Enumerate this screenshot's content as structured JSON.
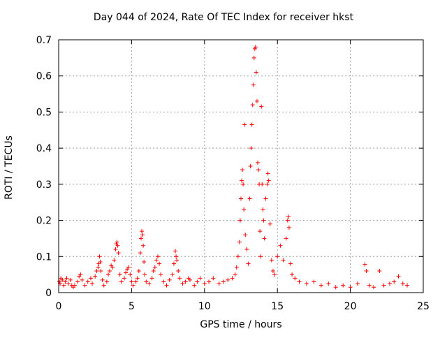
{
  "chart_data": {
    "type": "scatter",
    "title": "Day 044 of 2024, Rate Of TEC Index for receiver hkst",
    "xlabel": "GPS time / hours",
    "ylabel": "ROTI / TECUs",
    "xlim": [
      0,
      25
    ],
    "ylim": [
      0,
      0.7
    ],
    "xticks": [
      "0",
      "5",
      "10",
      "15",
      "20",
      "25"
    ],
    "yticks": [
      "0",
      "0.1",
      "0.2",
      "0.3",
      "0.4",
      "0.5",
      "0.6",
      "0.7"
    ],
    "grid": true,
    "marker": "+",
    "color": "#ff0000",
    "series": [
      {
        "name": "ROTI",
        "points": [
          [
            0.05,
            0.03
          ],
          [
            0.1,
            0.025
          ],
          [
            0.15,
            0.04
          ],
          [
            0.25,
            0.035
          ],
          [
            0.35,
            0.02
          ],
          [
            0.45,
            0.03
          ],
          [
            0.55,
            0.04
          ],
          [
            0.65,
            0.025
          ],
          [
            0.8,
            0.035
          ],
          [
            0.9,
            0.02
          ],
          [
            1.0,
            0.015
          ],
          [
            1.1,
            0.02
          ],
          [
            1.3,
            0.03
          ],
          [
            1.4,
            0.045
          ],
          [
            1.5,
            0.05
          ],
          [
            1.6,
            0.035
          ],
          [
            1.8,
            0.02
          ],
          [
            2.0,
            0.03
          ],
          [
            2.2,
            0.04
          ],
          [
            2.3,
            0.025
          ],
          [
            2.5,
            0.045
          ],
          [
            2.6,
            0.06
          ],
          [
            2.7,
            0.07
          ],
          [
            2.75,
            0.08
          ],
          [
            2.8,
            0.1
          ],
          [
            2.85,
            0.085
          ],
          [
            2.9,
            0.06
          ],
          [
            3.0,
            0.035
          ],
          [
            3.1,
            0.02
          ],
          [
            3.3,
            0.03
          ],
          [
            3.4,
            0.05
          ],
          [
            3.5,
            0.06
          ],
          [
            3.6,
            0.075
          ],
          [
            3.7,
            0.07
          ],
          [
            3.8,
            0.09
          ],
          [
            3.9,
            0.12
          ],
          [
            3.95,
            0.135
          ],
          [
            4.0,
            0.14
          ],
          [
            4.05,
            0.13
          ],
          [
            4.1,
            0.11
          ],
          [
            4.2,
            0.05
          ],
          [
            4.3,
            0.03
          ],
          [
            4.5,
            0.04
          ],
          [
            4.6,
            0.055
          ],
          [
            4.7,
            0.065
          ],
          [
            4.8,
            0.07
          ],
          [
            4.9,
            0.05
          ],
          [
            5.0,
            0.03
          ],
          [
            5.1,
            0.02
          ],
          [
            5.3,
            0.03
          ],
          [
            5.4,
            0.04
          ],
          [
            5.5,
            0.06
          ],
          [
            5.6,
            0.11
          ],
          [
            5.65,
            0.15
          ],
          [
            5.7,
            0.17
          ],
          [
            5.75,
            0.16
          ],
          [
            5.8,
            0.13
          ],
          [
            5.85,
            0.085
          ],
          [
            5.9,
            0.05
          ],
          [
            6.0,
            0.03
          ],
          [
            6.2,
            0.025
          ],
          [
            6.4,
            0.04
          ],
          [
            6.5,
            0.06
          ],
          [
            6.6,
            0.07
          ],
          [
            6.7,
            0.09
          ],
          [
            6.8,
            0.1
          ],
          [
            6.9,
            0.08
          ],
          [
            7.0,
            0.05
          ],
          [
            7.2,
            0.03
          ],
          [
            7.4,
            0.02
          ],
          [
            7.6,
            0.035
          ],
          [
            7.8,
            0.05
          ],
          [
            7.9,
            0.08
          ],
          [
            8.0,
            0.115
          ],
          [
            8.05,
            0.1
          ],
          [
            8.1,
            0.09
          ],
          [
            8.2,
            0.06
          ],
          [
            8.3,
            0.04
          ],
          [
            8.5,
            0.025
          ],
          [
            8.7,
            0.03
          ],
          [
            8.9,
            0.04
          ],
          [
            9.0,
            0.035
          ],
          [
            9.3,
            0.02
          ],
          [
            9.5,
            0.03
          ],
          [
            9.7,
            0.04
          ],
          [
            10.0,
            0.025
          ],
          [
            10.3,
            0.03
          ],
          [
            10.6,
            0.04
          ],
          [
            11.0,
            0.025
          ],
          [
            11.3,
            0.03
          ],
          [
            11.6,
            0.035
          ],
          [
            11.9,
            0.04
          ],
          [
            12.1,
            0.05
          ],
          [
            12.2,
            0.07
          ],
          [
            12.3,
            0.1
          ],
          [
            12.4,
            0.14
          ],
          [
            12.45,
            0.2
          ],
          [
            12.5,
            0.26
          ],
          [
            12.55,
            0.31
          ],
          [
            12.6,
            0.34
          ],
          [
            12.65,
            0.3
          ],
          [
            12.7,
            0.23
          ],
          [
            12.75,
            0.465
          ],
          [
            12.8,
            0.16
          ],
          [
            12.9,
            0.12
          ],
          [
            13.0,
            0.08
          ],
          [
            13.1,
            0.26
          ],
          [
            13.15,
            0.35
          ],
          [
            13.2,
            0.4
          ],
          [
            13.25,
            0.465
          ],
          [
            13.3,
            0.52
          ],
          [
            13.35,
            0.575
          ],
          [
            13.4,
            0.65
          ],
          [
            13.45,
            0.675
          ],
          [
            13.5,
            0.68
          ],
          [
            13.55,
            0.61
          ],
          [
            13.6,
            0.53
          ],
          [
            13.65,
            0.36
          ],
          [
            13.7,
            0.34
          ],
          [
            13.75,
            0.3
          ],
          [
            13.8,
            0.17
          ],
          [
            13.85,
            0.1
          ],
          [
            13.9,
            0.515
          ],
          [
            13.95,
            0.3
          ],
          [
            14.0,
            0.23
          ],
          [
            14.05,
            0.2
          ],
          [
            14.1,
            0.15
          ],
          [
            14.2,
            0.26
          ],
          [
            14.3,
            0.3
          ],
          [
            14.35,
            0.33
          ],
          [
            14.4,
            0.31
          ],
          [
            14.5,
            0.19
          ],
          [
            14.6,
            0.09
          ],
          [
            14.7,
            0.06
          ],
          [
            14.8,
            0.05
          ],
          [
            15.0,
            0.1
          ],
          [
            15.2,
            0.13
          ],
          [
            15.4,
            0.09
          ],
          [
            15.6,
            0.15
          ],
          [
            15.7,
            0.2
          ],
          [
            15.75,
            0.21
          ],
          [
            15.8,
            0.18
          ],
          [
            15.9,
            0.08
          ],
          [
            16.0,
            0.05
          ],
          [
            16.2,
            0.04
          ],
          [
            16.5,
            0.03
          ],
          [
            17.0,
            0.025
          ],
          [
            17.5,
            0.03
          ],
          [
            18.0,
            0.02
          ],
          [
            18.5,
            0.025
          ],
          [
            19.0,
            0.015
          ],
          [
            19.5,
            0.02
          ],
          [
            20.0,
            0.015
          ],
          [
            20.5,
            0.025
          ],
          [
            21.0,
            0.078
          ],
          [
            21.1,
            0.06
          ],
          [
            21.3,
            0.02
          ],
          [
            21.6,
            0.015
          ],
          [
            22.0,
            0.06
          ],
          [
            22.3,
            0.02
          ],
          [
            22.7,
            0.025
          ],
          [
            23.0,
            0.03
          ],
          [
            23.3,
            0.045
          ],
          [
            23.6,
            0.025
          ],
          [
            23.9,
            0.02
          ]
        ]
      }
    ]
  }
}
